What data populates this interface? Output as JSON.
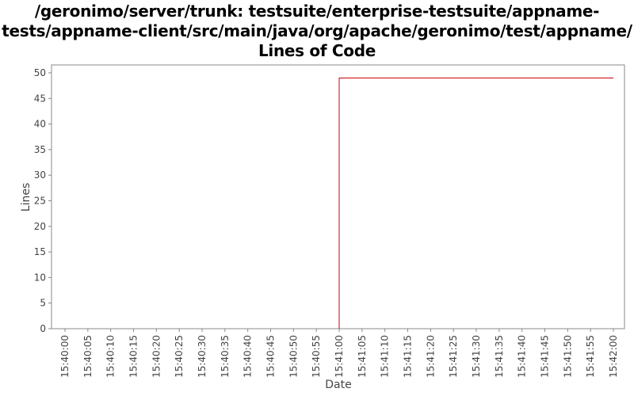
{
  "chart_data": {
    "type": "line",
    "title_lines": [
      "/geronimo/server/trunk: testsuite/enterprise-testsuite/appname-",
      "tests/appname-client/src/main/java/org/apache/geronimo/test/appname/",
      "Lines of Code"
    ],
    "xlabel": "Date",
    "ylabel": "Lines",
    "ylim": [
      0,
      50
    ],
    "yticks": [
      0,
      5,
      10,
      15,
      20,
      25,
      30,
      35,
      40,
      45,
      50
    ],
    "xticks": [
      "15:40:00",
      "15:40:05",
      "15:40:10",
      "15:40:15",
      "15:40:20",
      "15:40:25",
      "15:40:30",
      "15:40:35",
      "15:40:40",
      "15:40:45",
      "15:40:50",
      "15:40:55",
      "15:41:00",
      "15:41:05",
      "15:41:10",
      "15:41:15",
      "15:41:20",
      "15:41:25",
      "15:41:30",
      "15:41:35",
      "15:41:40",
      "15:41:45",
      "15:41:50",
      "15:41:55",
      "15:42:00"
    ],
    "series": [
      {
        "color": "#cc0000",
        "step": true,
        "x": [
          "15:41:00",
          "15:42:00"
        ],
        "y": [
          49,
          49
        ]
      }
    ],
    "grid": false
  }
}
